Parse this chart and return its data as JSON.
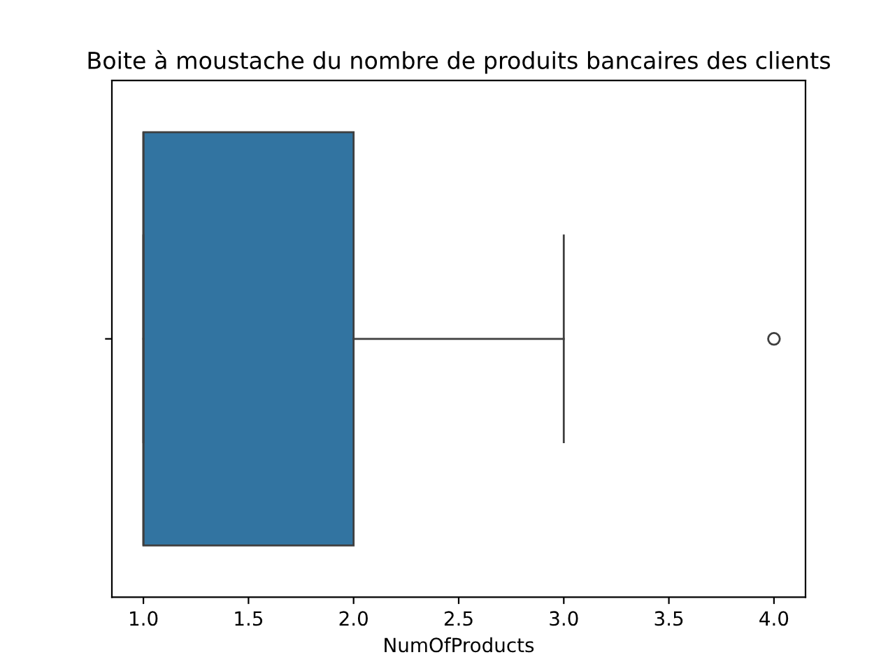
{
  "chart_data": {
    "type": "box",
    "title": "Boite à moustache du nombre de produits bancaires des clients",
    "xlabel": "NumOfProducts",
    "orientation": "horizontal",
    "categories": [
      null
    ],
    "boxes": [
      {
        "low": 1,
        "q1": 1,
        "median": 1,
        "q3": 2,
        "high": 3,
        "outliers": [
          4
        ]
      }
    ],
    "color": "#3274a1",
    "xlim": [
      0.85,
      4.15
    ],
    "xticks": [
      {
        "value": 1,
        "label": "1.0"
      },
      {
        "value": 1.5,
        "label": "1.5"
      },
      {
        "value": 2,
        "label": "2.0"
      },
      {
        "value": 2.5,
        "label": "2.5"
      },
      {
        "value": 3,
        "label": "3.0"
      },
      {
        "value": 3.5,
        "label": "3.5"
      },
      {
        "value": 4,
        "label": "4.0"
      }
    ]
  }
}
